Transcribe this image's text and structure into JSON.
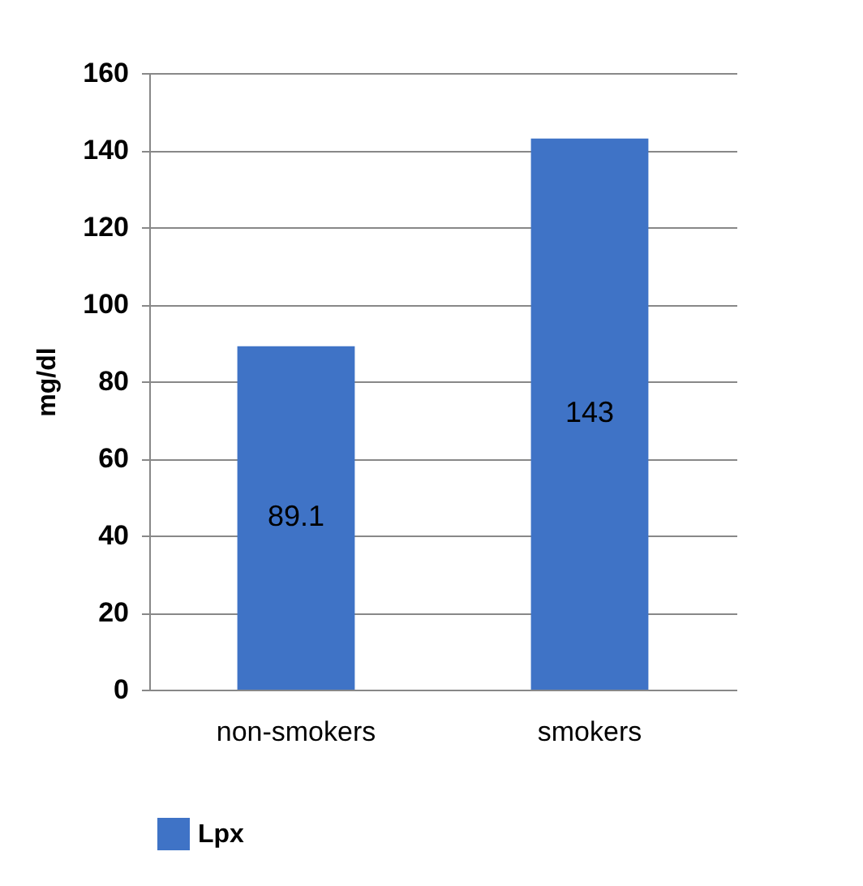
{
  "chart_data": {
    "type": "bar",
    "ylabel": "mg/dl",
    "categories": [
      "non-smokers",
      "smokers"
    ],
    "series": [
      {
        "name": "Lpx",
        "color": "#3f73c6",
        "values": [
          89.1,
          143
        ]
      }
    ],
    "ylim": [
      0,
      160
    ],
    "yticks": [
      0,
      20,
      40,
      60,
      80,
      100,
      120,
      140,
      160
    ],
    "grid": "y",
    "legend": "bottom left",
    "data_labels": true
  }
}
